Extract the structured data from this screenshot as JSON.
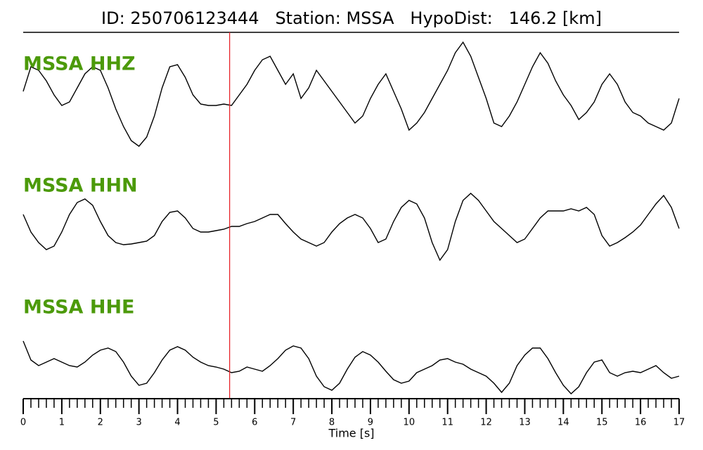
{
  "chart_data": {
    "type": "seismogram",
    "title": "ID: 250706123444   Station: MSSA   HypoDist:   146.2 [km]",
    "xlabel": "Time [s]",
    "xlim": [
      0,
      17
    ],
    "xticks": [
      0,
      1,
      2,
      3,
      4,
      5,
      6,
      7,
      8,
      9,
      10,
      11,
      12,
      13,
      14,
      15,
      16,
      17
    ],
    "xticks_minor": [
      0,
      0.2,
      0.4,
      0.6,
      0.8,
      1,
      1.2,
      1.4,
      1.6,
      1.8,
      2,
      2.2,
      2.4,
      2.6,
      2.8,
      3,
      3.2,
      3.4,
      3.6,
      3.8,
      4,
      4.2,
      4.4,
      4.6,
      4.8,
      5,
      5.2,
      5.4,
      5.6,
      5.8,
      6,
      6.2,
      6.4,
      6.6,
      6.8,
      7,
      7.2,
      7.4,
      7.6,
      7.8,
      8,
      8.2,
      8.4,
      8.6,
      8.8,
      9,
      9.2,
      9.4,
      9.6,
      9.8,
      10,
      10.2,
      10.4,
      10.6,
      10.8,
      11,
      11.2,
      11.4,
      11.6,
      11.8,
      12,
      12.2,
      12.4,
      12.6,
      12.8,
      13,
      13.2,
      13.4,
      13.6,
      13.8,
      14,
      14.2,
      14.4,
      14.6,
      14.8,
      15,
      15.2,
      15.4,
      15.6,
      15.8,
      16,
      16.2,
      16.4,
      16.6,
      16.8,
      17
    ],
    "ylim": [
      -80,
      80
    ],
    "pick": 5.35,
    "pick_color": "#e8262b",
    "label_color": "#4c9a0a",
    "x": [
      0,
      0.2,
      0.4,
      0.6,
      0.8,
      1,
      1.2,
      1.4,
      1.6,
      1.8,
      2,
      2.2,
      2.4,
      2.6,
      2.8,
      3,
      3.2,
      3.4,
      3.6,
      3.8,
      4,
      4.2,
      4.4,
      4.6,
      4.8,
      5,
      5.2,
      5.4,
      5.6,
      5.8,
      6,
      6.2,
      6.4,
      6.6,
      6.8,
      7,
      7.2,
      7.4,
      7.6,
      7.8,
      8,
      8.2,
      8.4,
      8.6,
      8.8,
      9,
      9.2,
      9.4,
      9.6,
      9.8,
      10,
      10.2,
      10.4,
      10.6,
      10.8,
      11,
      11.2,
      11.4,
      11.6,
      11.8,
      12,
      12.2,
      12.4,
      12.6,
      12.8,
      13,
      13.2,
      13.4,
      13.6,
      13.8,
      14,
      14.2,
      14.4,
      14.6,
      14.8,
      15,
      15.2,
      15.4,
      15.6,
      15.8,
      16,
      16.2,
      16.4,
      16.6,
      16.8,
      17
    ],
    "series": [
      {
        "name": "MSSA HHZ",
        "color": "#000000",
        "values": [
          3,
          38,
          33,
          18,
          -2,
          -17,
          -12,
          8,
          28,
          38,
          33,
          8,
          -22,
          -47,
          -67,
          -75,
          -62,
          -32,
          8,
          38,
          41,
          23,
          -2,
          -15,
          -17,
          -17,
          -15,
          -17,
          -2,
          13,
          33,
          48,
          53,
          33,
          13,
          28,
          -7,
          8,
          33,
          18,
          3,
          -12,
          -27,
          -42,
          -32,
          -7,
          13,
          28,
          3,
          -22,
          -52,
          -42,
          -27,
          -7,
          13,
          33,
          58,
          73,
          53,
          23,
          -7,
          -42,
          -47,
          -32,
          -12,
          13,
          38,
          58,
          43,
          18,
          -2,
          -17,
          -37,
          -27,
          -12,
          13,
          28,
          13,
          -12,
          -27,
          -32,
          -42,
          -47,
          -52,
          -42,
          -7
        ]
      },
      {
        "name": "MSSA HHN",
        "color": "#000000",
        "values": [
          15,
          -10,
          -25,
          -35,
          -30,
          -10,
          15,
          32,
          37,
          28,
          5,
          -15,
          -25,
          -28,
          -27,
          -25,
          -23,
          -15,
          5,
          18,
          20,
          10,
          -5,
          -10,
          -10,
          -8,
          -6,
          -2,
          -2,
          2,
          5,
          10,
          15,
          15,
          2,
          -10,
          -20,
          -25,
          -30,
          -25,
          -10,
          2,
          10,
          15,
          10,
          -5,
          -25,
          -20,
          5,
          25,
          35,
          30,
          10,
          -25,
          -50,
          -35,
          5,
          35,
          45,
          35,
          20,
          5,
          -5,
          -15,
          -25,
          -20,
          -5,
          10,
          20,
          20,
          20,
          23,
          20,
          25,
          15,
          -15,
          -30,
          -25,
          -18,
          -10,
          0,
          15,
          30,
          42,
          25,
          -5
        ]
      },
      {
        "name": "MSSA HHE",
        "color": "#000000",
        "values": [
          37,
          10,
          2,
          7,
          12,
          7,
          2,
          0,
          7,
          17,
          24,
          27,
          22,
          7,
          -13,
          -26,
          -23,
          -8,
          10,
          24,
          29,
          24,
          14,
          7,
          2,
          0,
          -3,
          -8,
          -6,
          0,
          -3,
          -6,
          2,
          12,
          24,
          30,
          27,
          12,
          -13,
          -28,
          -33,
          -23,
          -3,
          14,
          22,
          17,
          7,
          -6,
          -18,
          -23,
          -20,
          -8,
          -3,
          2,
          10,
          12,
          7,
          4,
          -3,
          -8,
          -13,
          -23,
          -36,
          -23,
          2,
          17,
          27,
          27,
          12,
          -8,
          -26,
          -38,
          -28,
          -8,
          7,
          10,
          -8,
          -13,
          -8,
          -6,
          -8,
          -3,
          2,
          -8,
          -16,
          -13
        ]
      }
    ]
  }
}
